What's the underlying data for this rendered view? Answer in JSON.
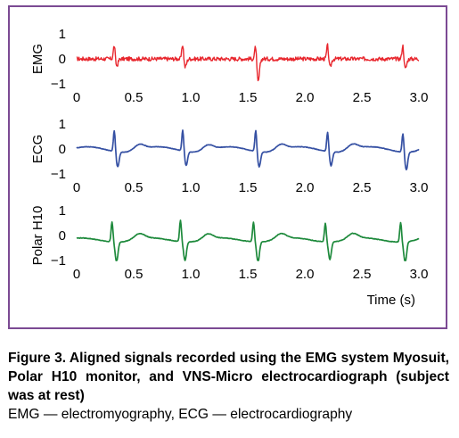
{
  "colors": {
    "frame": "#7b4a93",
    "emg": "#e8262d",
    "ecg": "#3550a3",
    "polar": "#1e8a3c"
  },
  "caption": {
    "title": "Figure 3. Aligned signals recorded using the EMG system Myosuit, Polar H10 monitor, and VNS-Micro electrocardiograph (subject was at rest)",
    "abbreviations": "EMG — electromyography, ECG — electrocardiography"
  },
  "chart_data": [
    {
      "type": "line",
      "ylabel": "EMG",
      "xlabel": "",
      "xlim": [
        0,
        3.0
      ],
      "ylim": [
        -1,
        1
      ],
      "xticks": [
        "0",
        "0.5",
        "1.0",
        "1.5",
        "2.0",
        "2.5",
        "3.0"
      ],
      "yticks": [
        "1",
        "0",
        "−1"
      ],
      "series": [
        {
          "color": "#e8262d",
          "beats": [
            0.33,
            0.93,
            1.57,
            2.2,
            2.86
          ],
          "peaks": [
            [
              0.33,
              0.6
            ],
            [
              0.93,
              0.65
            ],
            [
              1.57,
              0.68
            ],
            [
              2.2,
              0.62
            ],
            [
              2.86,
              0.62
            ]
          ],
          "troughs": [
            [
              0.35,
              -0.3
            ],
            [
              0.95,
              -0.35
            ],
            [
              1.59,
              -0.95
            ],
            [
              2.22,
              -0.35
            ],
            [
              2.88,
              -0.42
            ]
          ]
        }
      ]
    },
    {
      "type": "line",
      "ylabel": "ECG",
      "xlabel": "",
      "xlim": [
        0,
        3.0
      ],
      "ylim": [
        -1,
        1
      ],
      "xticks": [
        "0",
        "0.5",
        "1.0",
        "1.5",
        "2.0",
        "2.5",
        "3.0"
      ],
      "yticks": [
        "1",
        "0",
        "−1"
      ],
      "series": [
        {
          "color": "#3550a3",
          "beats": [
            0.33,
            0.93,
            1.57,
            2.2,
            2.86
          ],
          "peaks": [
            [
              0.33,
              0.85
            ],
            [
              0.93,
              0.85
            ],
            [
              1.57,
              0.85
            ],
            [
              2.2,
              0.8
            ],
            [
              2.86,
              0.75
            ]
          ],
          "troughs": [
            [
              0.36,
              -0.6
            ],
            [
              0.96,
              -0.55
            ],
            [
              1.6,
              -0.6
            ],
            [
              2.23,
              -0.55
            ],
            [
              2.89,
              -0.7
            ]
          ]
        }
      ]
    },
    {
      "type": "line",
      "ylabel": "Polar H10",
      "xlabel": "Time (s)",
      "xlim": [
        0,
        3.0
      ],
      "ylim": [
        -1,
        1
      ],
      "xticks": [
        "0",
        "0.5",
        "1.0",
        "1.5",
        "2.0",
        "2.5",
        "3.0"
      ],
      "yticks": [
        "1",
        "0",
        "−1"
      ],
      "series": [
        {
          "color": "#1e8a3c",
          "beats": [
            0.33,
            0.93,
            1.57,
            2.2,
            2.86
          ],
          "peaks": [
            [
              0.31,
              0.8
            ],
            [
              0.91,
              0.85
            ],
            [
              1.55,
              0.8
            ],
            [
              2.18,
              0.75
            ],
            [
              2.84,
              0.78
            ]
          ],
          "troughs": [
            [
              0.35,
              -0.8
            ],
            [
              0.95,
              -0.75
            ],
            [
              1.59,
              -0.8
            ],
            [
              2.22,
              -0.7
            ],
            [
              2.88,
              -0.85
            ]
          ]
        }
      ]
    }
  ]
}
